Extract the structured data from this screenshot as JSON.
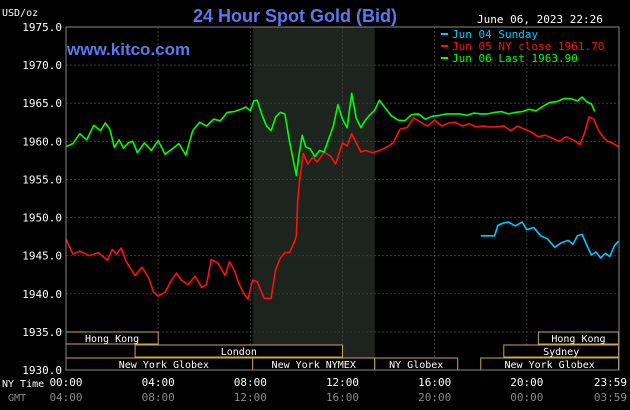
{
  "chart_data": {
    "type": "line",
    "title": "24 Hour Spot Gold (Bid)",
    "source_label": "www.kitco.com",
    "ylabel": "USD/oz",
    "timestamp": "June 06, 2023 22:26",
    "ylim": [
      1930.0,
      1975.0
    ],
    "y_ticks": [
      "1975.0",
      "1970.0",
      "1965.0",
      "1960.0",
      "1955.0",
      "1950.0",
      "1945.0",
      "1940.0",
      "1935.0",
      "1930.0"
    ],
    "x_range_hours": [
      0,
      24
    ],
    "x_ticks": [
      {
        "h": 0,
        "ny": "00:00",
        "gmt": "04:00"
      },
      {
        "h": 4,
        "ny": "04:00",
        "gmt": "08:00"
      },
      {
        "h": 8,
        "ny": "08:00",
        "gmt": "12:00"
      },
      {
        "h": 12,
        "ny": "12:00",
        "gmt": "16:00"
      },
      {
        "h": 16,
        "ny": "16:00",
        "gmt": "20:00"
      },
      {
        "h": 20,
        "ny": "20:00",
        "gmt": "00:00"
      },
      {
        "h": 23.98,
        "ny": "23:59",
        "gmt": "03:59"
      }
    ],
    "x_row_labels": {
      "ny": "NY Time",
      "gmt": "GMT"
    },
    "grid": true,
    "legend_position": "top-right",
    "highlight_band_hours": [
      8.1,
      13.4
    ],
    "series": [
      {
        "name": "Jun 04 Sunday",
        "color": "#00c8ff",
        "x": [
          18.0,
          18.3,
          18.6,
          18.75,
          19.0,
          19.2,
          19.5,
          19.8,
          20.0,
          20.3,
          20.6,
          20.9,
          21.2,
          21.5,
          21.8,
          22.0,
          22.2,
          22.4,
          22.6,
          22.8,
          23.0,
          23.2,
          23.4,
          23.6,
          23.8,
          23.98
        ],
        "y": [
          1947.6,
          1947.6,
          1947.6,
          1949.0,
          1949.3,
          1949.4,
          1948.9,
          1949.4,
          1948.4,
          1948.7,
          1947.6,
          1947.2,
          1946.1,
          1946.7,
          1947.0,
          1946.5,
          1947.6,
          1947.8,
          1946.4,
          1945.1,
          1945.5,
          1944.7,
          1945.3,
          1944.9,
          1946.3,
          1946.9
        ]
      },
      {
        "name": "Jun 05 NY close 1961.70",
        "color": "#ff1010",
        "x": [
          0.0,
          0.15,
          0.3,
          0.6,
          1.0,
          1.4,
          1.8,
          2.0,
          2.2,
          2.4,
          2.6,
          3.0,
          3.3,
          3.6,
          3.8,
          4.0,
          4.3,
          4.6,
          4.8,
          5.0,
          5.3,
          5.6,
          5.9,
          6.1,
          6.3,
          6.6,
          6.9,
          7.1,
          7.3,
          7.5,
          7.7,
          7.9,
          8.1,
          8.3,
          8.6,
          8.9,
          9.1,
          9.3,
          9.5,
          9.7,
          9.9,
          10.0,
          10.05,
          10.15,
          10.3,
          10.5,
          10.7,
          10.9,
          11.2,
          11.5,
          11.7,
          12.0,
          12.2,
          12.4,
          12.6,
          12.8,
          13.0,
          13.3,
          13.6,
          13.9,
          14.2,
          14.5,
          14.8,
          15.1,
          15.4,
          15.7,
          16.0,
          16.3,
          16.6,
          16.9,
          17.2,
          17.5,
          17.8,
          18.1,
          18.4,
          18.7,
          19.0,
          19.3,
          19.6,
          19.9,
          20.2,
          20.5,
          20.8,
          21.1,
          21.4,
          21.7,
          22.0,
          22.3,
          22.5,
          22.7,
          22.9,
          23.1,
          23.3,
          23.5,
          23.7,
          23.98
        ],
        "y": [
          1947.2,
          1946.2,
          1945.2,
          1945.6,
          1945.0,
          1945.4,
          1944.4,
          1945.8,
          1945.2,
          1946.0,
          1944.3,
          1942.4,
          1943.5,
          1942.0,
          1940.2,
          1939.7,
          1940.2,
          1941.9,
          1942.7,
          1941.8,
          1941.2,
          1942.3,
          1940.8,
          1941.2,
          1944.5,
          1944.0,
          1942.4,
          1944.2,
          1943.1,
          1941.4,
          1940.1,
          1939.3,
          1941.8,
          1941.6,
          1939.4,
          1939.4,
          1943.2,
          1944.7,
          1945.4,
          1945.4,
          1946.7,
          1947.6,
          1952.0,
          1955.2,
          1958.4,
          1957.0,
          1957.9,
          1957.3,
          1958.6,
          1958.0,
          1957.0,
          1959.8,
          1959.4,
          1961.0,
          1959.8,
          1958.6,
          1958.8,
          1958.5,
          1958.8,
          1959.2,
          1959.8,
          1961.6,
          1961.8,
          1963.1,
          1962.5,
          1962.0,
          1962.8,
          1962.0,
          1962.4,
          1962.5,
          1962.0,
          1962.3,
          1961.9,
          1962.0,
          1961.9,
          1961.9,
          1962.0,
          1961.4,
          1962.0,
          1961.6,
          1961.2,
          1960.6,
          1960.8,
          1960.4,
          1960.0,
          1960.6,
          1960.2,
          1959.6,
          1961.0,
          1963.2,
          1962.9,
          1961.5,
          1960.6,
          1960.0,
          1959.8,
          1959.3
        ]
      },
      {
        "name": "Jun 06 Last 1963.90",
        "color": "#00ff00",
        "x": [
          0.0,
          0.3,
          0.6,
          0.9,
          1.2,
          1.5,
          1.7,
          1.9,
          2.1,
          2.3,
          2.5,
          2.7,
          2.9,
          3.1,
          3.4,
          3.7,
          4.0,
          4.3,
          4.6,
          4.9,
          5.2,
          5.5,
          5.8,
          6.1,
          6.4,
          6.7,
          7.0,
          7.3,
          7.6,
          7.8,
          8.0,
          8.15,
          8.3,
          8.5,
          8.7,
          8.9,
          9.1,
          9.3,
          9.5,
          9.7,
          9.9,
          10.0,
          10.1,
          10.25,
          10.4,
          10.6,
          10.8,
          11.0,
          11.2,
          11.4,
          11.6,
          11.8,
          12.0,
          12.2,
          12.4,
          12.6,
          12.8,
          13.0,
          13.2,
          13.4,
          13.6,
          13.8,
          14.1,
          14.4,
          14.7,
          15.0,
          15.3,
          15.6,
          15.9,
          16.2,
          16.5,
          16.8,
          17.1,
          17.4,
          17.7,
          18.0,
          18.3,
          18.6,
          18.9,
          19.2,
          19.5,
          19.8,
          20.1,
          20.4,
          20.7,
          21.0,
          21.3,
          21.6,
          21.9,
          22.2,
          22.4,
          22.6,
          22.8,
          22.95
        ],
        "y": [
          1959.3,
          1959.7,
          1961.0,
          1960.2,
          1962.1,
          1961.4,
          1962.4,
          1961.6,
          1959.2,
          1960.2,
          1959.1,
          1959.8,
          1960.0,
          1958.5,
          1959.8,
          1958.8,
          1960.1,
          1958.3,
          1959.0,
          1959.7,
          1958.2,
          1961.4,
          1962.5,
          1962.0,
          1962.9,
          1962.7,
          1963.8,
          1963.9,
          1964.2,
          1964.5,
          1964.0,
          1965.3,
          1965.4,
          1963.5,
          1962.0,
          1961.4,
          1963.2,
          1963.8,
          1963.6,
          1960.0,
          1957.0,
          1955.5,
          1958.0,
          1960.8,
          1959.3,
          1959.0,
          1958.0,
          1958.8,
          1958.6,
          1960.3,
          1962.0,
          1964.8,
          1962.9,
          1961.8,
          1966.3,
          1963.0,
          1961.8,
          1962.8,
          1963.5,
          1964.1,
          1965.4,
          1964.6,
          1963.4,
          1962.8,
          1962.7,
          1963.5,
          1963.6,
          1962.9,
          1963.3,
          1963.4,
          1963.6,
          1963.6,
          1963.6,
          1963.4,
          1963.7,
          1963.6,
          1963.6,
          1963.8,
          1963.9,
          1963.6,
          1963.8,
          1963.9,
          1964.2,
          1964.0,
          1964.6,
          1965.1,
          1965.2,
          1965.6,
          1965.6,
          1965.3,
          1965.8,
          1965.2,
          1964.9,
          1963.9
        ]
      }
    ],
    "sessions": [
      {
        "label": "Hong Kong",
        "start": 0.0,
        "end": 4.0,
        "row": 0
      },
      {
        "label": "London",
        "start": 3.0,
        "end": 12.0,
        "row": 1
      },
      {
        "label": "New York Globex",
        "start": 0.0,
        "end": 8.5,
        "row": 2
      },
      {
        "label": "New York NYMEX",
        "start": 8.1,
        "end": 13.4,
        "row": 2
      },
      {
        "label": "NY Globex",
        "start": 13.4,
        "end": 17.0,
        "row": 2
      },
      {
        "label": "Hong Kong",
        "start": 20.5,
        "end": 23.98,
        "row": 0
      },
      {
        "label": "Sydney",
        "start": 19.0,
        "end": 23.98,
        "row": 1
      },
      {
        "label": "New York Globex",
        "start": 18.0,
        "end": 23.98,
        "row": 2
      }
    ]
  }
}
